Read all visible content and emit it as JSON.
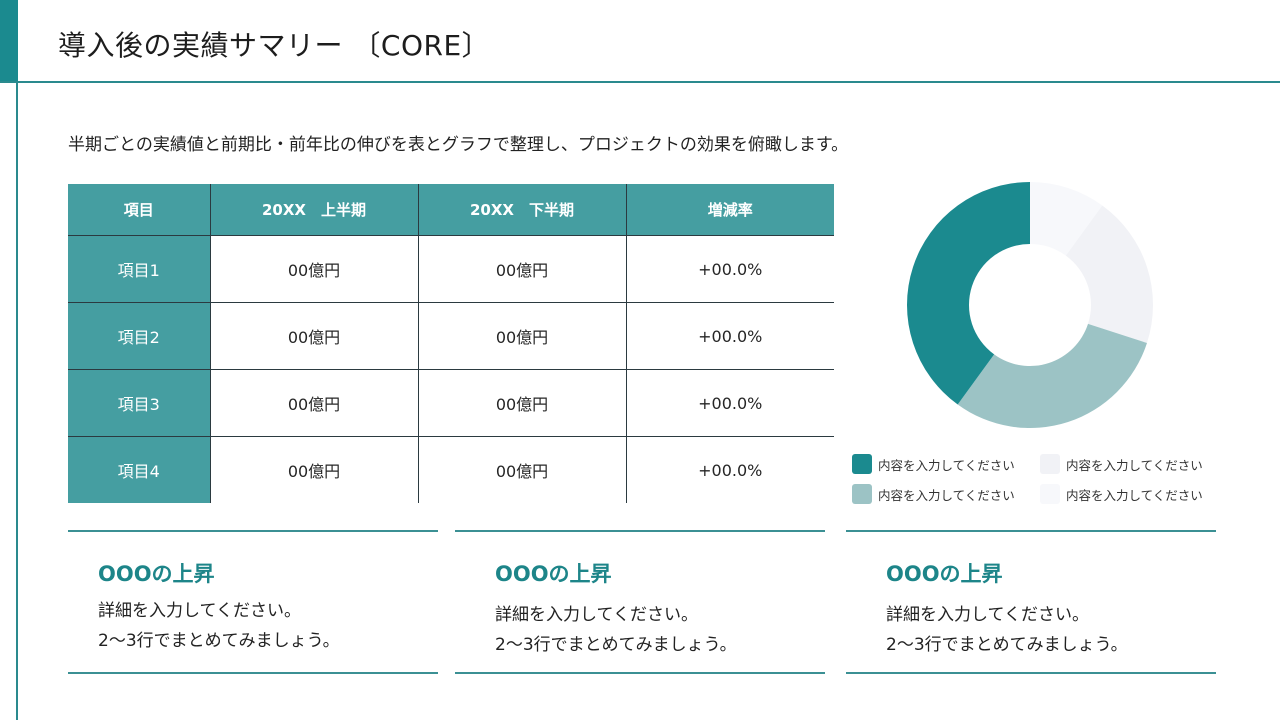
{
  "header": {
    "title": "導入後の実績サマリー 〔CORE〕",
    "subtitle": "半期ごとの実績値と前期比・前年比の伸びを表とグラフで整理し、プロジェクトの効果を俯瞰します。"
  },
  "colors": {
    "accent": "#1b8a8f",
    "table_header": "#459ea1",
    "rule": "#2a8a8e"
  },
  "table": {
    "headers": [
      "項目",
      "20XX　上半期",
      "20XX　下半期",
      "増減率"
    ],
    "rows": [
      {
        "label": "項目1",
        "h1": "00億円",
        "h2": "00億円",
        "rate": "+00.0%"
      },
      {
        "label": "項目2",
        "h1": "00億円",
        "h2": "00億円",
        "rate": "+00.0%"
      },
      {
        "label": "項目3",
        "h1": "00億円",
        "h2": "00億円",
        "rate": "+00.0%"
      },
      {
        "label": "項目4",
        "h1": "00億円",
        "h2": "00億円",
        "rate": "+00.0%"
      }
    ]
  },
  "chart_data": {
    "type": "pie",
    "variant": "donut",
    "title": "",
    "start_angle": "top, clockwise",
    "categories": [
      "内容を入力してください",
      "内容を入力してください",
      "内容を入力してください",
      "内容を入力してください"
    ],
    "series_order_clockwise": [
      "very-light",
      "light-gray",
      "light-teal",
      "dark-teal"
    ],
    "slices": [
      {
        "label": "内容を入力してください",
        "value": 10,
        "color": "#f7f8fb"
      },
      {
        "label": "内容を入力してください",
        "value": 20,
        "color": "#f1f2f6"
      },
      {
        "label": "内容を入力してください",
        "value": 30,
        "color": "#9cc3c5"
      },
      {
        "label": "内容を入力してください",
        "value": 40,
        "color": "#1b8a8f"
      }
    ],
    "legend": {
      "position": "bottom",
      "items": [
        {
          "label": "内容を入力してください",
          "color": "#1b8a8f"
        },
        {
          "label": "内容を入力してください",
          "color": "#f1f2f6"
        },
        {
          "label": "内容を入力してください",
          "color": "#9cc3c5"
        },
        {
          "label": "内容を入力してください",
          "color": "#f7f8fb"
        }
      ]
    }
  },
  "cards": [
    {
      "title": "OOOの上昇",
      "line1": "詳細を入力してください。",
      "line2": "2〜3行でまとめてみましょう。"
    },
    {
      "title": "OOOの上昇",
      "line1": "詳細を入力してください。",
      "line2": "2〜3行でまとめてみましょう。"
    },
    {
      "title": "OOOの上昇",
      "line1": "詳細を入力してください。",
      "line2": "2〜3行でまとめてみましょう。"
    }
  ]
}
